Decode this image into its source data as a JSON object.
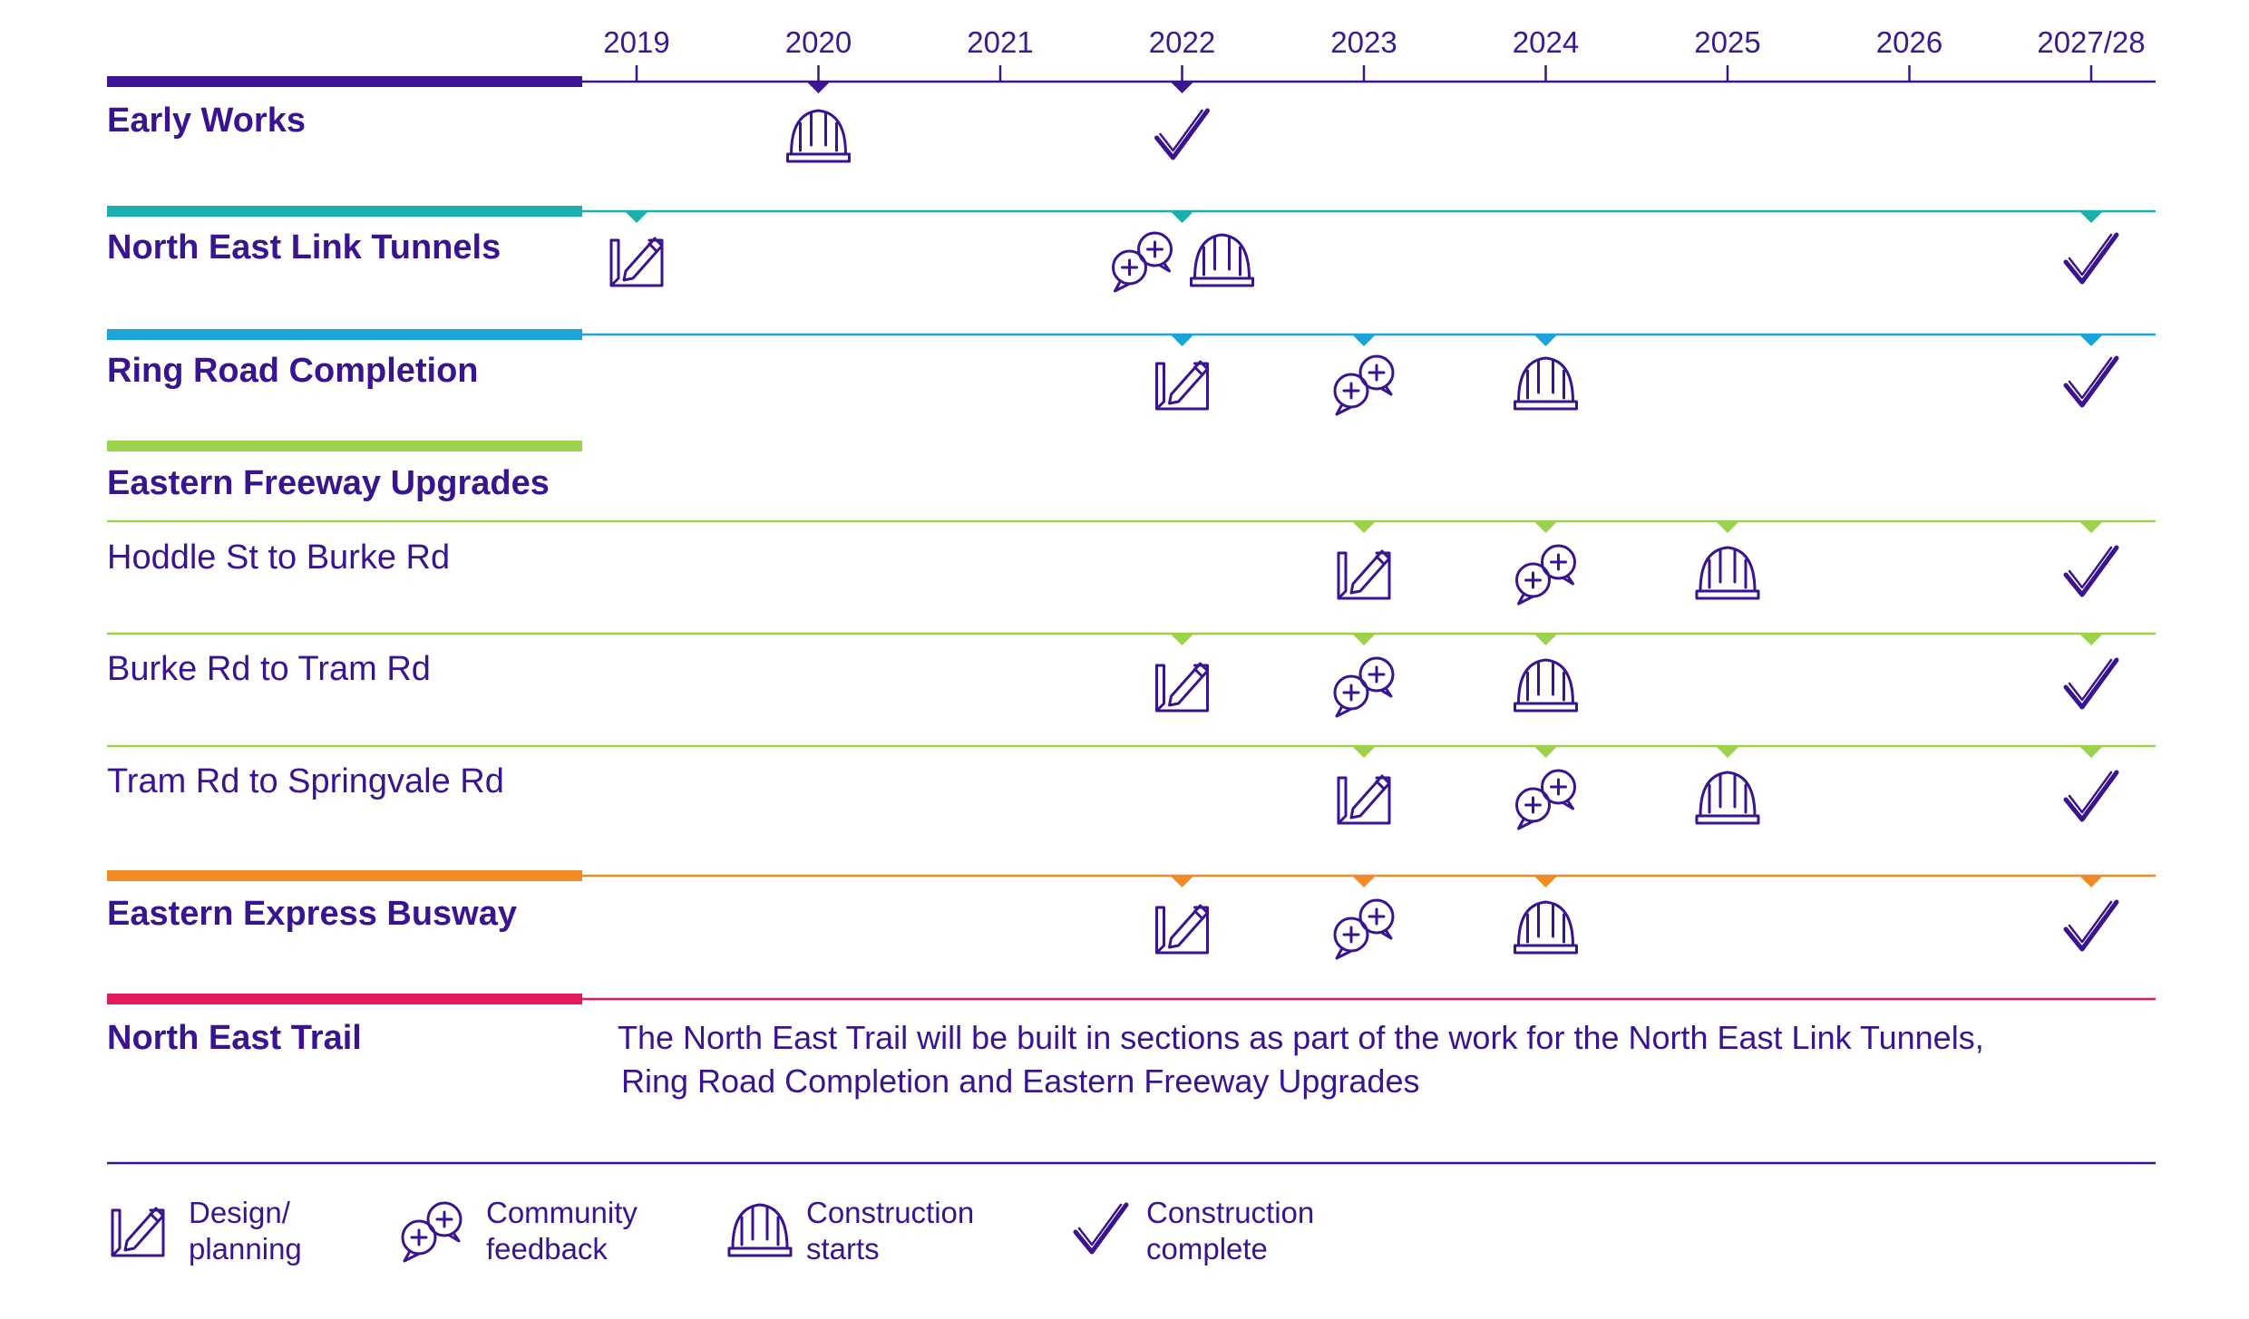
{
  "years": [
    "2019",
    "2020",
    "2021",
    "2022",
    "2023",
    "2024",
    "2025",
    "2026",
    "2027/28"
  ],
  "colors": {
    "ink": "#3a1490",
    "early_works": "#3d1494",
    "tunnels": "#1bb0ae",
    "ring_road": "#1aa4d8",
    "eastern_freeway": "#9bd24a",
    "busway": "#f08a24",
    "trail": "#e5195f"
  },
  "rows": [
    {
      "id": "early-works",
      "label": "Early Works",
      "style": "title",
      "color": "early_works",
      "icons": [
        {
          "year": "2020",
          "type": "construction-start"
        },
        {
          "year": "2022",
          "type": "construction-complete"
        }
      ]
    },
    {
      "id": "north-east-link-tunnels",
      "label": "North East Link Tunnels",
      "style": "title",
      "color": "tunnels",
      "icons": [
        {
          "year": "2019",
          "type": "design"
        },
        {
          "year": "2022",
          "type": "community"
        },
        {
          "year": "2022",
          "type": "construction-start"
        },
        {
          "year": "2027/28",
          "type": "construction-complete"
        }
      ]
    },
    {
      "id": "ring-road-completion",
      "label": "Ring Road Completion",
      "style": "title",
      "color": "ring_road",
      "icons": [
        {
          "year": "2022",
          "type": "design"
        },
        {
          "year": "2023",
          "type": "community"
        },
        {
          "year": "2024",
          "type": "construction-start"
        },
        {
          "year": "2027/28",
          "type": "construction-complete"
        }
      ]
    },
    {
      "id": "eastern-freeway-upgrades",
      "label": "Eastern Freeway Upgrades",
      "style": "title",
      "color": "eastern_freeway",
      "icons": []
    },
    {
      "id": "hoddle-st-to-burke-rd",
      "label": "Hoddle St to Burke Rd",
      "style": "sub",
      "color": "eastern_freeway",
      "icons": [
        {
          "year": "2023",
          "type": "design"
        },
        {
          "year": "2024",
          "type": "community"
        },
        {
          "year": "2025",
          "type": "construction-start"
        },
        {
          "year": "2027/28",
          "type": "construction-complete"
        }
      ]
    },
    {
      "id": "burke-rd-to-tram-rd",
      "label": "Burke Rd to Tram Rd",
      "style": "sub",
      "color": "eastern_freeway",
      "icons": [
        {
          "year": "2022",
          "type": "design"
        },
        {
          "year": "2023",
          "type": "community"
        },
        {
          "year": "2024",
          "type": "construction-start"
        },
        {
          "year": "2027/28",
          "type": "construction-complete"
        }
      ]
    },
    {
      "id": "tram-rd-to-springvale-rd",
      "label": "Tram Rd to Springvale Rd",
      "style": "sub",
      "color": "eastern_freeway",
      "icons": [
        {
          "year": "2023",
          "type": "design"
        },
        {
          "year": "2024",
          "type": "community"
        },
        {
          "year": "2025",
          "type": "construction-start"
        },
        {
          "year": "2027/28",
          "type": "construction-complete"
        }
      ]
    },
    {
      "id": "eastern-express-busway",
      "label": "Eastern Express Busway",
      "style": "title",
      "color": "busway",
      "icons": [
        {
          "year": "2022",
          "type": "design"
        },
        {
          "year": "2023",
          "type": "community"
        },
        {
          "year": "2024",
          "type": "construction-start"
        },
        {
          "year": "2027/28",
          "type": "construction-complete"
        }
      ]
    },
    {
      "id": "north-east-trail",
      "label": "North East Trail",
      "style": "title",
      "color": "trail",
      "icons": [],
      "note_lines": [
        "The North East Trail will be built in sections as part of the work for the North East Link Tunnels,",
        "Ring Road Completion and Eastern Freeway Upgrades"
      ]
    }
  ],
  "legend": [
    {
      "type": "design",
      "lines": [
        "Design/",
        "planning"
      ]
    },
    {
      "type": "community",
      "lines": [
        "Community",
        "feedback"
      ]
    },
    {
      "type": "construction-start",
      "lines": [
        "Construction",
        "starts"
      ]
    },
    {
      "type": "construction-complete",
      "lines": [
        "Construction",
        "complete"
      ]
    }
  ]
}
